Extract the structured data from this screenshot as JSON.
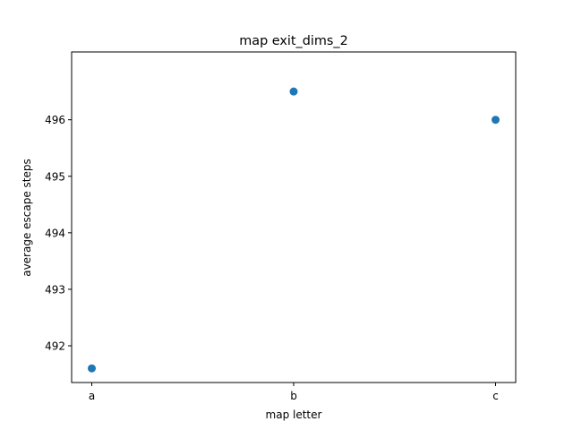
{
  "chart_data": {
    "type": "scatter",
    "title": "map exit_dims_2",
    "xlabel": "map letter",
    "ylabel": "average escape steps",
    "categories": [
      "a",
      "b",
      "c"
    ],
    "series": [
      {
        "values": [
          491.6,
          496.5,
          496.0
        ]
      }
    ],
    "ylim": [
      491.35,
      497.2
    ],
    "yticks": [
      492,
      493,
      494,
      495,
      496
    ],
    "grid": false,
    "marker_color": "#1f77b4"
  }
}
